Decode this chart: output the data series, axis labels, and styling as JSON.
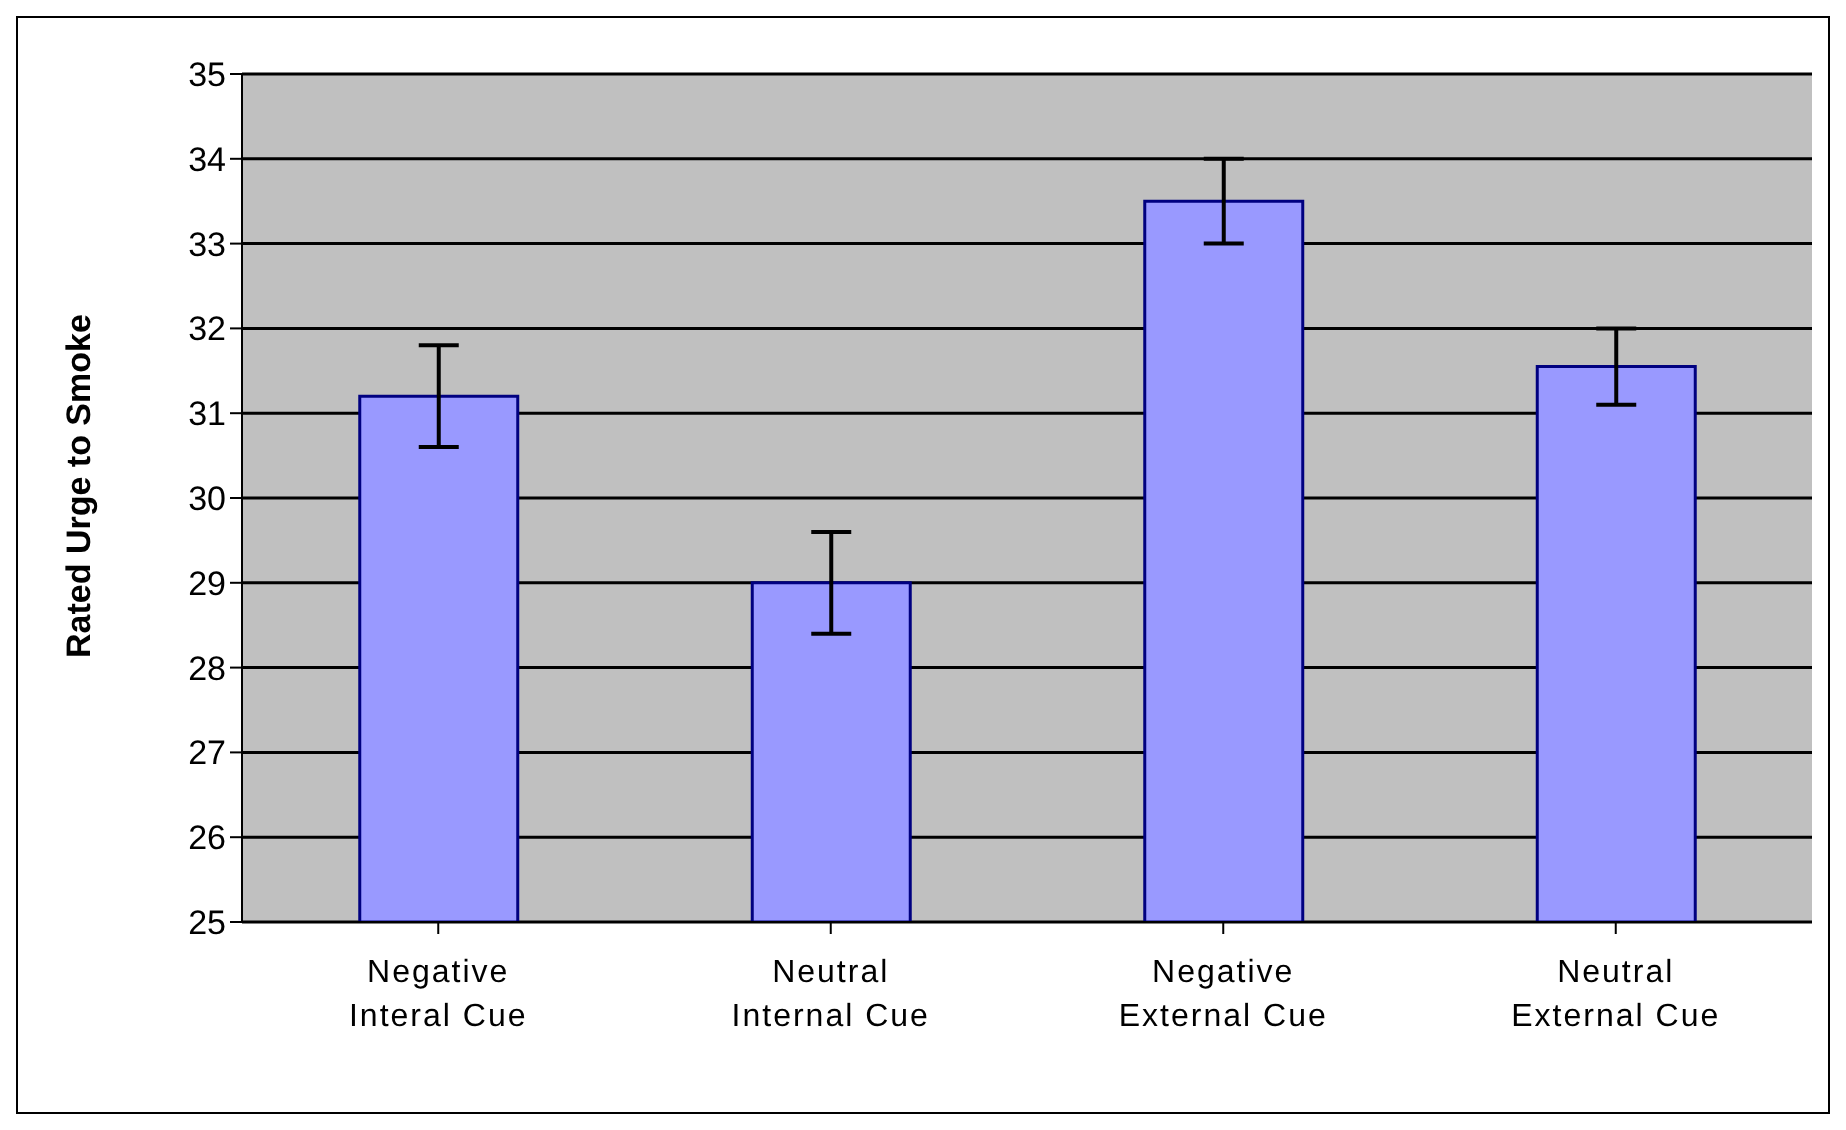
{
  "chart_data": {
    "type": "bar",
    "ylabel": "Rated Urge to Smoke",
    "categories": [
      "Negative Interal Cue",
      "Neutral Internal Cue",
      "Negative External Cue",
      "Neutral External Cue"
    ],
    "values": [
      31.2,
      29.0,
      33.5,
      31.55
    ],
    "errors": [
      0.6,
      0.6,
      0.5,
      0.45
    ],
    "color": "#9999ff",
    "ylim": [
      25,
      35
    ],
    "yticks": [
      25,
      26,
      27,
      28,
      29,
      30,
      31,
      32,
      33,
      34,
      35
    ],
    "grid": "y"
  }
}
